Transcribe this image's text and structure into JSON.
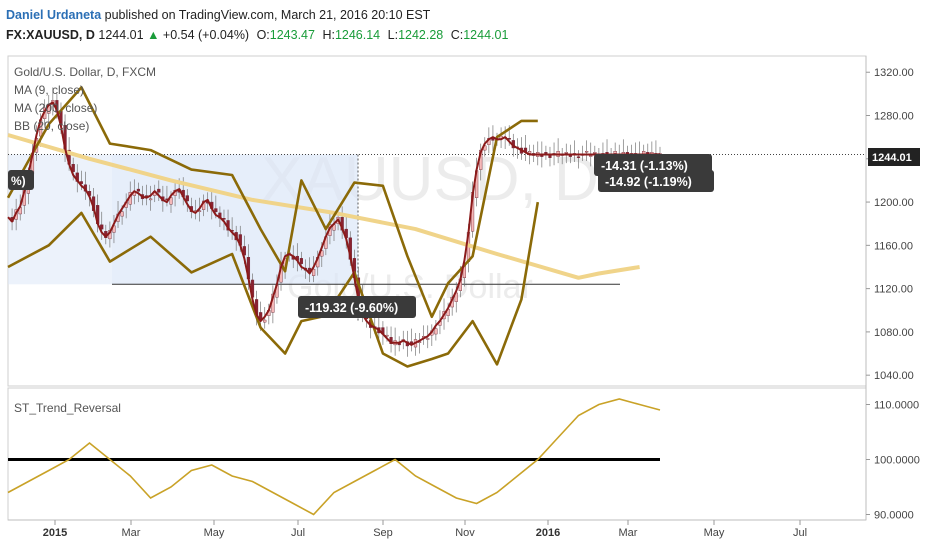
{
  "header": {
    "author": "Daniel Urdaneta",
    "published": "published on TradingView.com, March 21, 2016 20:10 EST",
    "symbol": "FX:XAUUSD, D",
    "last": "1244.01",
    "change": "+0.54 (+0.04%)",
    "open_label": "O:",
    "open": "1243.47",
    "high_label": "H:",
    "high": "1246.14",
    "low_label": "L:",
    "low": "1242.28",
    "close_label": "C:",
    "close": "1244.01"
  },
  "watermark": {
    "symbol": "XAUUSD, D",
    "name": "Gold/U.S. Dollar"
  },
  "legend": {
    "title": "Gold/U.S. Dollar, D, FXCM",
    "ma9": "MA (9, close)",
    "ma200": "MA (200, close)",
    "bb": "BB (20, close)",
    "indicator": "ST_Trend_Reversal"
  },
  "callouts": {
    "left_clip": "%)",
    "measure_drop": "-119.32 (-9.60%)",
    "measure_top1": "-14.31 (-1.13%)",
    "measure_top2": "-14.92 (-1.19%)",
    "last_price": "1244.01"
  },
  "colors": {
    "candle_up": "#f5b8b8",
    "candle_down": "#8b2230",
    "ma9": "#8b1a1a",
    "ma200": "#f0d48a",
    "bollinger": "#8b6a08",
    "indicator": "#c9a227",
    "measure_fill": "#dde8f8",
    "callout_bg": "#3a3a3a"
  },
  "chart_data": [
    {
      "type": "line",
      "title": "Gold/U.S. Dollar, D, FXCM",
      "x_tick_labels": [
        "2015",
        "Mar",
        "May",
        "Jul",
        "Sep",
        "Nov",
        "2016",
        "Mar",
        "May",
        "Jul"
      ],
      "y_tick_labels": [
        "1320.00",
        "1280.00",
        "1240.00",
        "1200.00",
        "1160.00",
        "1120.00",
        "1080.00",
        "1040.00"
      ],
      "ylim": [
        1030,
        1335
      ],
      "last_value": 1244.01,
      "series": [
        {
          "name": "MA (9, close)",
          "x": [
            0,
            1,
            2,
            3,
            4,
            5,
            6,
            7,
            8,
            9,
            10,
            11,
            12,
            13,
            14,
            15,
            16,
            17,
            18,
            19,
            20,
            21,
            22,
            23,
            24,
            25,
            26,
            27,
            28,
            29,
            30,
            31,
            32,
            33,
            34,
            35,
            36,
            37,
            38,
            39,
            40,
            41,
            42,
            43,
            44,
            45,
            46,
            47,
            48,
            49,
            50,
            51,
            52,
            53,
            54,
            55,
            56,
            57,
            58,
            59,
            60,
            61,
            62,
            63,
            64,
            65,
            66,
            67,
            68,
            69,
            70,
            71,
            72,
            73,
            74,
            75,
            76,
            77,
            78,
            79,
            80,
            81,
            82,
            83,
            84,
            85,
            86,
            87,
            88,
            89,
            90,
            91,
            92,
            93,
            94,
            95,
            96,
            97,
            98,
            99,
            100,
            101,
            102,
            103,
            104,
            105,
            106,
            107,
            108,
            109,
            110,
            111,
            112,
            113,
            114,
            115,
            116,
            117,
            118,
            119,
            120,
            121,
            122,
            123,
            124,
            125,
            126,
            127,
            128,
            129,
            130,
            131,
            132,
            133,
            134,
            135,
            136,
            137,
            138,
            139,
            140,
            141,
            142,
            143,
            144,
            145,
            146,
            147,
            148,
            149,
            150,
            151,
            152,
            153,
            154,
            155,
            156,
            157,
            158,
            159,
            160
          ],
          "values": [
            1186,
            1182,
            1190,
            1196,
            1210,
            1226,
            1244,
            1262,
            1276,
            1284,
            1290,
            1292,
            1285,
            1270,
            1250,
            1235,
            1225,
            1220,
            1215,
            1212,
            1205,
            1195,
            1180,
            1172,
            1168,
            1172,
            1180,
            1188,
            1194,
            1200,
            1206,
            1210,
            1208,
            1205,
            1204,
            1206,
            1210,
            1206,
            1202,
            1200,
            1206,
            1210,
            1212,
            1205,
            1198,
            1192,
            1190,
            1194,
            1200,
            1202,
            1194,
            1188,
            1186,
            1182,
            1176,
            1172,
            1168,
            1160,
            1148,
            1130,
            1110,
            1096,
            1090,
            1094,
            1100,
            1112,
            1124,
            1140,
            1150,
            1152,
            1150,
            1146,
            1140,
            1138,
            1134,
            1140,
            1148,
            1158,
            1168,
            1176,
            1180,
            1184,
            1176,
            1166,
            1150,
            1130,
            1110,
            1096,
            1090,
            1086,
            1084,
            1082,
            1078,
            1074,
            1070,
            1070,
            1070,
            1072,
            1070,
            1068,
            1070,
            1072,
            1074,
            1076,
            1080,
            1086,
            1090,
            1096,
            1102,
            1110,
            1118,
            1128,
            1146,
            1172,
            1206,
            1230,
            1246,
            1254,
            1258,
            1260,
            1258,
            1258,
            1260,
            1256,
            1252,
            1250,
            1248,
            1246,
            1244,
            1244,
            1244,
            1244,
            1244,
            1244,
            1244,
            1244,
            1244,
            1244,
            1244,
            1244,
            1244,
            1244,
            1244,
            1244,
            1244,
            1244,
            1244,
            1244,
            1244,
            1244,
            1244,
            1244,
            1244,
            1244,
            1244,
            1244,
            1244,
            1244,
            1244,
            1244,
            1244
          ]
        },
        {
          "name": "MA (200, close)",
          "x": [
            0,
            20,
            40,
            60,
            80,
            100,
            120,
            140,
            145,
            155
          ],
          "values": [
            1262,
            1240,
            1220,
            1202,
            1190,
            1175,
            1152,
            1130,
            1134,
            1140
          ]
        },
        {
          "name": "BB (20, close) upper",
          "x": [
            0,
            10,
            18,
            25,
            35,
            45,
            55,
            62,
            68,
            72,
            78,
            85,
            92,
            98,
            104,
            108,
            114,
            120,
            126,
            130
          ],
          "values": [
            1204,
            1272,
            1306,
            1254,
            1248,
            1230,
            1225,
            1175,
            1136,
            1220,
            1175,
            1218,
            1215,
            1150,
            1094,
            1125,
            1150,
            1260,
            1275,
            1275
          ]
        },
        {
          "name": "BB (20, close) lower",
          "x": [
            0,
            10,
            18,
            25,
            35,
            45,
            55,
            62,
            68,
            72,
            78,
            85,
            92,
            98,
            104,
            108,
            114,
            120,
            126,
            130
          ],
          "values": [
            1140,
            1160,
            1190,
            1145,
            1168,
            1135,
            1152,
            1084,
            1060,
            1090,
            1095,
            1135,
            1060,
            1048,
            1055,
            1060,
            1090,
            1050,
            1110,
            1200
          ]
        }
      ]
    },
    {
      "type": "line",
      "title": "ST_Trend_Reversal",
      "y_tick_labels": [
        "110.0000",
        "100.0000",
        "90.0000"
      ],
      "ylim": [
        89,
        113
      ],
      "reference_line": 100,
      "series": [
        {
          "name": "ST_Trend_Reversal",
          "x": [
            0,
            5,
            10,
            15,
            20,
            25,
            30,
            35,
            40,
            45,
            50,
            55,
            60,
            65,
            70,
            75,
            80,
            85,
            90,
            95,
            100,
            105,
            110,
            115,
            120,
            125,
            130,
            135,
            140,
            145,
            150,
            155,
            160
          ],
          "values": [
            94,
            96,
            98,
            100,
            103,
            100,
            97,
            93,
            95,
            98,
            99,
            97,
            96,
            94,
            92,
            90,
            94,
            96,
            98,
            100,
            97,
            95,
            93,
            92,
            94,
            97,
            100,
            104,
            108,
            110,
            111,
            110,
            109
          ]
        }
      ]
    }
  ]
}
